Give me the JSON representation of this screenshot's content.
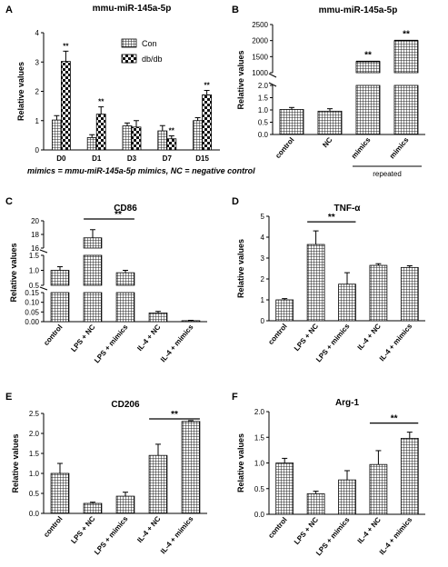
{
  "figure": {
    "footnote": "mimics = mmu-miR-145a-5p mimics, NC = negative control"
  },
  "chart_data": [
    {
      "panel": "A",
      "type": "bar",
      "title": "mmu-miR-145a-5p",
      "ylabel": "Relative values",
      "xlabel": "",
      "categories": [
        "D0",
        "D1",
        "D3",
        "D7",
        "D15"
      ],
      "series": [
        {
          "name": "Con",
          "pattern": "grid",
          "values": [
            1.02,
            0.42,
            0.82,
            0.65,
            1.0
          ],
          "errors": [
            0.15,
            0.1,
            0.1,
            0.18,
            0.1
          ]
        },
        {
          "name": "db/db",
          "pattern": "checker",
          "values": [
            3.02,
            1.22,
            0.78,
            0.38,
            1.88
          ],
          "errors": [
            0.35,
            0.25,
            0.22,
            0.1,
            0.15
          ]
        }
      ],
      "significance": [
        "**",
        "**",
        "",
        "**",
        "**"
      ],
      "ylim": [
        0,
        4
      ],
      "yticks": [
        "0",
        "1",
        "2",
        "3",
        "4"
      ],
      "legend": "top-right"
    },
    {
      "panel": "B",
      "type": "bar",
      "title": "mmu-miR-145a-5p",
      "ylabel": "Relative values",
      "xlabel": "",
      "categories": [
        "control",
        "NC",
        "mimics",
        "mimics"
      ],
      "values": [
        1.02,
        0.95,
        1350,
        2000
      ],
      "errors": [
        0.08,
        0.1,
        0,
        0
      ],
      "significance": [
        "",
        "",
        "**",
        "**"
      ],
      "broken_axis": {
        "lower": [
          0,
          2.0
        ],
        "upper": [
          1000,
          2500
        ]
      },
      "yticks_lower": [
        "0.0",
        "0.5",
        "1.0",
        "1.5",
        "2.0"
      ],
      "yticks_upper": [
        "1000",
        "1500",
        "2000",
        "2500"
      ],
      "group_label": "repeated"
    },
    {
      "panel": "C",
      "type": "bar",
      "title": "CD86",
      "ylabel": "Relative values",
      "xlabel": "",
      "categories": [
        "control",
        "LPS + NC",
        "LPS + mimics",
        "IL-4 + NC",
        "IL-4 + mimics"
      ],
      "values": [
        1.0,
        17.5,
        0.92,
        0.045,
        0.005
      ],
      "errors": [
        0.12,
        1.2,
        0.08,
        0.008,
        0.002
      ],
      "significance_bracket": {
        "from": "LPS + NC",
        "to": "LPS + mimics",
        "label": "**"
      },
      "broken_axis": {
        "segments": [
          [
            0,
            0.15
          ],
          [
            0.5,
            1.5
          ],
          [
            16,
            20
          ]
        ]
      },
      "yticks_low": [
        "0.00",
        "0.05",
        "0.10",
        "0.15"
      ],
      "yticks_mid": [
        "0.5",
        "1.0",
        "1.5"
      ],
      "yticks_high": [
        "16",
        "18",
        "20"
      ]
    },
    {
      "panel": "D",
      "type": "bar",
      "title": "TNF-α",
      "ylabel": "Relative values",
      "xlabel": "",
      "categories": [
        "control",
        "LPS + NC",
        "LPS + mimics",
        "IL-4 + NC",
        "IL-4 + mimics"
      ],
      "values": [
        1.0,
        3.65,
        1.75,
        2.65,
        2.55
      ],
      "errors": [
        0.06,
        0.65,
        0.55,
        0.08,
        0.08
      ],
      "significance_bracket": {
        "from": "LPS + NC",
        "to": "LPS + mimics",
        "label": "**"
      },
      "ylim": [
        0,
        5
      ],
      "yticks": [
        "0",
        "1",
        "2",
        "3",
        "4",
        "5"
      ]
    },
    {
      "panel": "E",
      "type": "bar",
      "title": "CD206",
      "ylabel": "Relative values",
      "xlabel": "",
      "categories": [
        "control",
        "LPS + NC",
        "LPS + mimics",
        "IL-4 + NC",
        "IL-4 + mimics"
      ],
      "values": [
        1.0,
        0.25,
        0.43,
        1.45,
        2.3
      ],
      "errors": [
        0.25,
        0.03,
        0.1,
        0.28,
        0.02
      ],
      "significance_bracket": {
        "from": "IL-4 + NC",
        "to": "IL-4 + mimics",
        "label": "**"
      },
      "ylim": [
        0,
        2.5
      ],
      "yticks": [
        "0.0",
        "0.5",
        "1.0",
        "1.5",
        "2.0",
        "2.5"
      ]
    },
    {
      "panel": "F",
      "type": "bar",
      "title": "Arg-1",
      "ylabel": "Relative values",
      "xlabel": "",
      "categories": [
        "control",
        "LPS + NC",
        "LPS + mimics",
        "IL-4 + NC",
        "IL-4 + mimics"
      ],
      "values": [
        1.0,
        0.4,
        0.67,
        0.97,
        1.48
      ],
      "errors": [
        0.09,
        0.05,
        0.18,
        0.27,
        0.12
      ],
      "significance_bracket": {
        "from": "IL-4 + NC",
        "to": "IL-4 + mimics",
        "label": "**"
      },
      "ylim": [
        0,
        2.0
      ],
      "yticks": [
        "0.0",
        "0.5",
        "1.0",
        "1.5",
        "2.0"
      ]
    }
  ]
}
